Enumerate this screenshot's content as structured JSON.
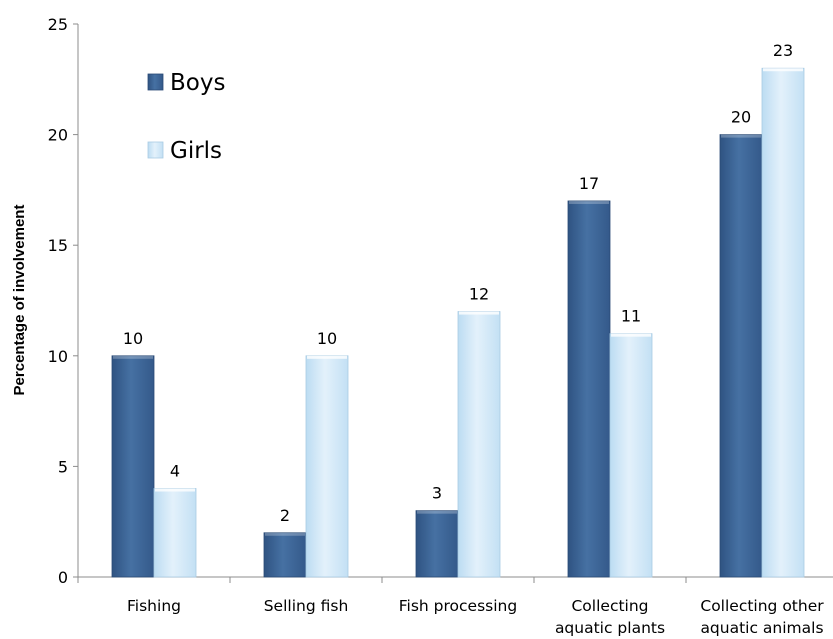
{
  "chart_data": {
    "type": "bar",
    "title": "",
    "xlabel": "",
    "ylabel": "Percentage of involvement",
    "ylim": [
      0,
      25
    ],
    "yticks": [
      0,
      5,
      10,
      15,
      20,
      25
    ],
    "categories": [
      [
        "Fishing"
      ],
      [
        "Selling fish"
      ],
      [
        "Fish processing"
      ],
      [
        "Collecting",
        "aquatic plants"
      ],
      [
        "Collecting other",
        "aquatic animals"
      ]
    ],
    "series": [
      {
        "name": "Boys",
        "color": "#3e6797",
        "values": [
          10,
          2,
          3,
          17,
          20
        ]
      },
      {
        "name": "Girls",
        "color": "#cfe6f7",
        "values": [
          4,
          10,
          12,
          11,
          23
        ]
      }
    ],
    "legend_position": "top-left",
    "grid": false
  }
}
